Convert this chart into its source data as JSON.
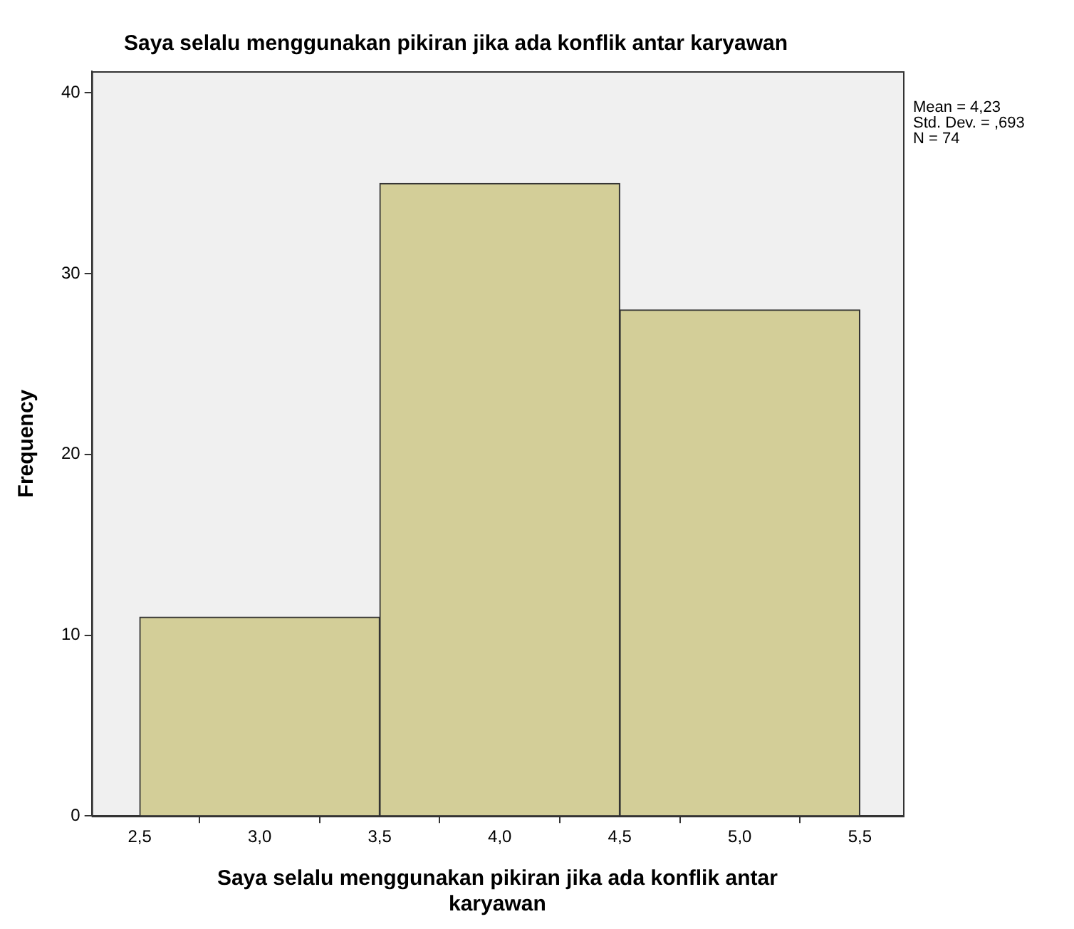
{
  "chart_data": {
    "type": "histogram",
    "title": "Saya selalu menggunakan pikiran jika ada konflik antar karyawan",
    "xlabel": "Saya selalu menggunakan pikiran jika ada konflik antar karyawan",
    "ylabel": "Frequency",
    "bins": [
      2.5,
      3.5,
      4.5,
      5.5
    ],
    "values": [
      11,
      35,
      28
    ],
    "color": "#d3ce98",
    "xlim": [
      2.3,
      5.68
    ],
    "xticks": [
      {
        "value": 2.5,
        "label": "2,5"
      },
      {
        "value": 3,
        "label": "3,0"
      },
      {
        "value": 3.5,
        "label": "3,5"
      },
      {
        "value": 4,
        "label": "4,0"
      },
      {
        "value": 4.5,
        "label": "4,5"
      },
      {
        "value": 5,
        "label": "5,0"
      },
      {
        "value": 5.5,
        "label": "5,5"
      }
    ],
    "ylim": [
      0,
      41.2
    ],
    "yticks": [
      0,
      10,
      20,
      30,
      40
    ],
    "grid": false,
    "legend": false,
    "annotations": [
      "Mean = 4,23",
      "Std. Dev. = ,693",
      "N = 74"
    ]
  }
}
